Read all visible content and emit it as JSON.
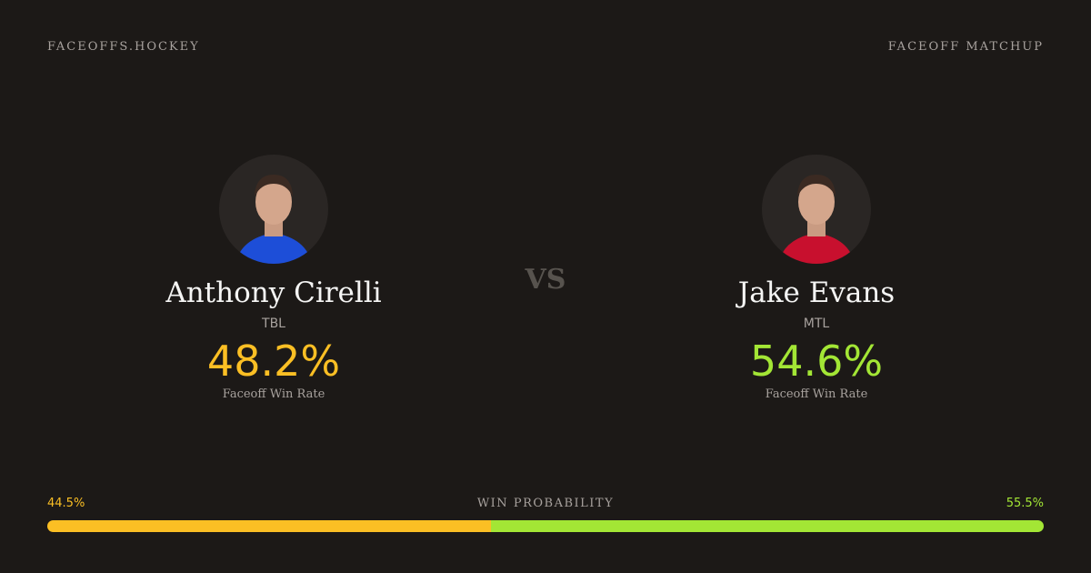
{
  "header": {
    "site": "FACEOFFS.HOCKEY",
    "label": "FACEOFF MATCHUP"
  },
  "players": [
    {
      "name": "Anthony Cirelli",
      "team": "TBL",
      "rate": "48.2%",
      "rate_label": "Faceoff Win Rate",
      "color": "#fbbf24",
      "jersey": "#1d4ed8"
    },
    {
      "name": "Jake Evans",
      "team": "MTL",
      "rate": "54.6%",
      "rate_label": "Faceoff Win Rate",
      "color": "#a3e635",
      "jersey": "#c8102e"
    }
  ],
  "vs": "VS",
  "probability": {
    "label": "WIN PROBABILITY",
    "values": [
      44.5,
      55.5
    ],
    "value_labels": [
      "44.5%",
      "55.5%"
    ]
  }
}
